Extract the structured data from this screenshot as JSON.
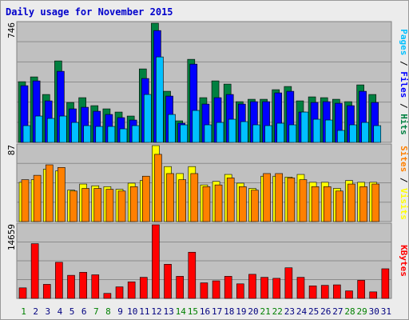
{
  "title": "Daily usage for November 2015",
  "colors": {
    "hits": "#008040",
    "files": "#0000ff",
    "pages": "#00c0ff",
    "visits": "#ffff00",
    "sites": "#ff8000",
    "kbytes": "#ff0000",
    "day_normal": "#000080",
    "day_weekend": "#008000",
    "panel_bg": "#c0c0c0"
  },
  "chart_data": [
    {
      "type": "bar",
      "panel": "hits-files-pages",
      "ymax_label": "746",
      "ylim": [
        0,
        746
      ],
      "legend": [
        {
          "text": "Pages",
          "color": "#00c0ff"
        },
        {
          "text": " / ",
          "color": "#000000"
        },
        {
          "text": "Files",
          "color": "#0000ff"
        },
        {
          "text": " / ",
          "color": "#000000"
        },
        {
          "text": "Hits",
          "color": "#008040"
        }
      ],
      "categories": [
        "1",
        "2",
        "3",
        "4",
        "5",
        "6",
        "7",
        "8",
        "9",
        "10",
        "11",
        "12",
        "13",
        "14",
        "15",
        "16",
        "17",
        "18",
        "19",
        "20",
        "21",
        "22",
        "23",
        "24",
        "25",
        "26",
        "27",
        "28",
        "29",
        "30",
        "31"
      ],
      "series": [
        {
          "name": "Hits",
          "values": [
            380,
            410,
            300,
            510,
            250,
            280,
            230,
            210,
            190,
            165,
            460,
            746,
            320,
            135,
            520,
            280,
            385,
            365,
            255,
            270,
            270,
            330,
            350,
            260,
            285,
            280,
            270,
            255,
            360,
            300,
            0
          ]
        },
        {
          "name": "Files",
          "values": [
            355,
            385,
            260,
            445,
            210,
            220,
            195,
            175,
            155,
            140,
            400,
            700,
            290,
            120,
            490,
            240,
            280,
            300,
            240,
            255,
            255,
            310,
            320,
            190,
            250,
            255,
            245,
            230,
            320,
            250,
            0
          ]
        },
        {
          "name": "Pages",
          "values": [
            105,
            165,
            150,
            165,
            125,
            105,
            100,
            100,
            85,
            105,
            300,
            535,
            175,
            110,
            200,
            110,
            125,
            145,
            130,
            110,
            105,
            120,
            110,
            190,
            145,
            140,
            75,
            110,
            125,
            105,
            0
          ]
        }
      ]
    },
    {
      "type": "bar",
      "panel": "visits-sites",
      "ymax_label": "87",
      "ylim": [
        0,
        87
      ],
      "legend": [
        {
          "text": "Sites",
          "color": "#ff8000"
        },
        {
          "text": " / ",
          "color": "#000000"
        },
        {
          "text": "Visits",
          "color": "#ffff00"
        }
      ],
      "categories": [
        "1",
        "2",
        "3",
        "4",
        "5",
        "6",
        "7",
        "8",
        "9",
        "10",
        "11",
        "12",
        "13",
        "14",
        "15",
        "16",
        "17",
        "18",
        "19",
        "20",
        "21",
        "22",
        "23",
        "24",
        "25",
        "26",
        "27",
        "28",
        "29",
        "30",
        "31"
      ],
      "series": [
        {
          "name": "Visits",
          "values": [
            45,
            48,
            60,
            58,
            36,
            43,
            41,
            40,
            37,
            44,
            47,
            87,
            63,
            55,
            63,
            42,
            46,
            54,
            44,
            38,
            52,
            52,
            51,
            54,
            45,
            45,
            38,
            47,
            45,
            45,
            0
          ]
        },
        {
          "name": "Sites",
          "values": [
            48,
            53,
            65,
            62,
            35,
            38,
            38,
            37,
            35,
            40,
            52,
            77,
            55,
            48,
            55,
            40,
            42,
            50,
            40,
            36,
            55,
            55,
            50,
            48,
            40,
            40,
            35,
            43,
            40,
            43,
            0
          ]
        }
      ]
    },
    {
      "type": "bar",
      "panel": "kbytes",
      "ymax_label": "14659",
      "ylim": [
        0,
        14659
      ],
      "legend": [
        {
          "text": "KBytes",
          "color": "#ff0000"
        }
      ],
      "categories": [
        "1",
        "2",
        "3",
        "4",
        "5",
        "6",
        "7",
        "8",
        "9",
        "10",
        "11",
        "12",
        "13",
        "14",
        "15",
        "16",
        "17",
        "18",
        "19",
        "20",
        "21",
        "22",
        "23",
        "24",
        "25",
        "26",
        "27",
        "28",
        "29",
        "30",
        "31"
      ],
      "series": [
        {
          "name": "KBytes",
          "values": [
            2100,
            10900,
            2800,
            7200,
            4600,
            5200,
            4700,
            1000,
            2300,
            3300,
            4200,
            14659,
            6800,
            4400,
            9200,
            3100,
            3500,
            4400,
            2900,
            4800,
            4200,
            4000,
            6100,
            4200,
            2500,
            2600,
            2700,
            1500,
            3600,
            1300,
            5900
          ]
        }
      ]
    }
  ],
  "days": [
    {
      "label": "1",
      "weekend": true
    },
    {
      "label": "2",
      "weekend": false
    },
    {
      "label": "3",
      "weekend": false
    },
    {
      "label": "4",
      "weekend": false
    },
    {
      "label": "5",
      "weekend": false
    },
    {
      "label": "6",
      "weekend": false
    },
    {
      "label": "7",
      "weekend": true
    },
    {
      "label": "8",
      "weekend": true
    },
    {
      "label": "9",
      "weekend": false
    },
    {
      "label": "10",
      "weekend": false
    },
    {
      "label": "11",
      "weekend": false
    },
    {
      "label": "12",
      "weekend": false
    },
    {
      "label": "13",
      "weekend": false
    },
    {
      "label": "14",
      "weekend": true
    },
    {
      "label": "15",
      "weekend": true
    },
    {
      "label": "16",
      "weekend": false
    },
    {
      "label": "17",
      "weekend": false
    },
    {
      "label": "18",
      "weekend": false
    },
    {
      "label": "19",
      "weekend": false
    },
    {
      "label": "20",
      "weekend": false
    },
    {
      "label": "21",
      "weekend": true
    },
    {
      "label": "22",
      "weekend": true
    },
    {
      "label": "23",
      "weekend": false
    },
    {
      "label": "24",
      "weekend": false
    },
    {
      "label": "25",
      "weekend": false
    },
    {
      "label": "26",
      "weekend": false
    },
    {
      "label": "27",
      "weekend": false
    },
    {
      "label": "28",
      "weekend": true
    },
    {
      "label": "29",
      "weekend": true
    },
    {
      "label": "30",
      "weekend": false
    },
    {
      "label": "31",
      "weekend": false
    }
  ]
}
